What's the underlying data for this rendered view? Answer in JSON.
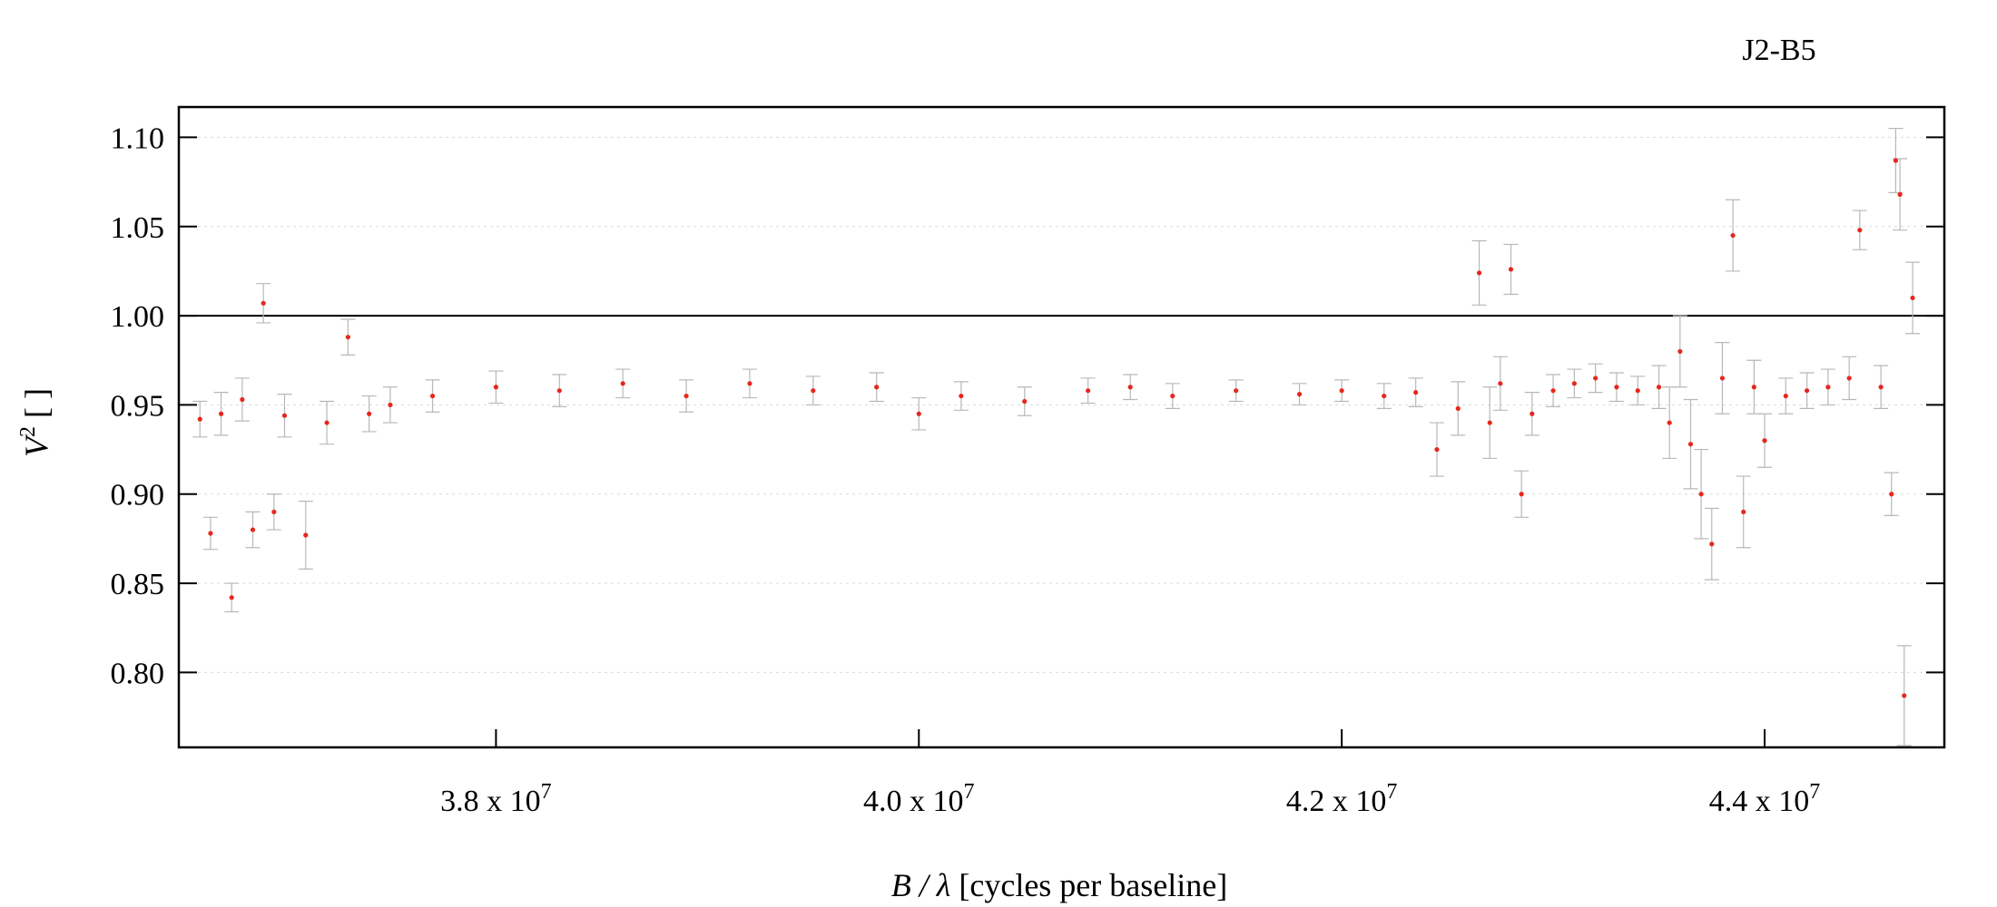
{
  "chart_data": {
    "type": "scatter",
    "baseline_title": "J2-B5",
    "xlabel": {
      "italic": "B / λ",
      "rest": " [cycles per baseline]"
    },
    "ylabel": {
      "base": "V",
      "sup": "2",
      "rest": " [ ]"
    },
    "xlim": [
      36500000,
      44850000
    ],
    "ylim": [
      0.758,
      1.117
    ],
    "x_ticks": [
      {
        "value": 38000000,
        "mantissa": "3.8 x 10",
        "exp": "7"
      },
      {
        "value": 40000000,
        "mantissa": "4.0 x 10",
        "exp": "7"
      },
      {
        "value": 42000000,
        "mantissa": "4.2 x 10",
        "exp": "7"
      },
      {
        "value": 44000000,
        "mantissa": "4.4 x 10",
        "exp": "7"
      }
    ],
    "y_ticks": [
      {
        "value": 0.8,
        "label": "0.80"
      },
      {
        "value": 0.85,
        "label": "0.85"
      },
      {
        "value": 0.9,
        "label": "0.90"
      },
      {
        "value": 0.95,
        "label": "0.95"
      },
      {
        "value": 1.0,
        "label": "1.00"
      },
      {
        "value": 1.05,
        "label": "1.05"
      },
      {
        "value": 1.1,
        "label": "1.10"
      }
    ],
    "reference_line": 1.0,
    "grid": true,
    "legend": "none",
    "colors": {
      "point": "#e8261c",
      "errorbar": "#b8b8b8",
      "grid": "#dcdcdc",
      "axis": "#000000"
    },
    "series": [
      {
        "x": [
          36600000,
          36650000,
          36700000,
          36750000,
          36800000,
          36850000,
          36900000,
          36950000,
          37000000,
          37100000,
          37200000,
          37300000,
          37400000,
          37500000,
          37700000,
          38000000,
          38300000,
          38600000,
          38900000,
          39200000,
          39500000,
          39800000,
          40000000,
          40200000,
          40500000,
          40800000,
          41000000,
          41200000,
          41500000,
          41800000,
          42000000,
          42200000,
          42350000,
          42450000,
          42550000,
          42650000,
          42700000,
          42750000,
          42800000,
          42850000,
          42900000,
          43000000,
          43100000,
          43200000,
          43300000,
          43400000,
          43500000,
          43550000,
          43600000,
          43650000,
          43700000,
          43750000,
          43800000,
          43850000,
          43900000,
          43950000,
          44000000,
          44100000,
          44200000,
          44300000,
          44400000,
          44450000,
          44550000,
          44600000,
          44620000,
          44640000,
          44660000,
          44700000
        ],
        "y": [
          0.942,
          0.878,
          0.945,
          0.842,
          0.953,
          0.88,
          1.007,
          0.89,
          0.944,
          0.877,
          0.94,
          0.988,
          0.945,
          0.95,
          0.955,
          0.96,
          0.958,
          0.962,
          0.955,
          0.962,
          0.958,
          0.96,
          0.945,
          0.955,
          0.952,
          0.958,
          0.96,
          0.955,
          0.958,
          0.956,
          0.958,
          0.955,
          0.957,
          0.925,
          0.948,
          1.024,
          0.94,
          0.962,
          1.026,
          0.9,
          0.945,
          0.958,
          0.962,
          0.965,
          0.96,
          0.958,
          0.96,
          0.94,
          0.98,
          0.928,
          0.9,
          0.872,
          0.965,
          1.045,
          0.89,
          0.96,
          0.93,
          0.955,
          0.958,
          0.96,
          0.965,
          1.048,
          0.96,
          0.9,
          1.087,
          1.068,
          0.787,
          1.01
        ],
        "err": [
          0.01,
          0.009,
          0.012,
          0.008,
          0.012,
          0.01,
          0.011,
          0.01,
          0.012,
          0.019,
          0.012,
          0.01,
          0.01,
          0.01,
          0.009,
          0.009,
          0.009,
          0.008,
          0.009,
          0.008,
          0.008,
          0.008,
          0.009,
          0.008,
          0.008,
          0.007,
          0.007,
          0.007,
          0.006,
          0.006,
          0.006,
          0.007,
          0.008,
          0.015,
          0.015,
          0.018,
          0.02,
          0.015,
          0.014,
          0.013,
          0.012,
          0.009,
          0.008,
          0.008,
          0.008,
          0.008,
          0.012,
          0.02,
          0.02,
          0.025,
          0.025,
          0.02,
          0.02,
          0.02,
          0.02,
          0.015,
          0.015,
          0.01,
          0.01,
          0.01,
          0.012,
          0.011,
          0.012,
          0.012,
          0.018,
          0.02,
          0.028,
          0.02
        ]
      }
    ]
  }
}
